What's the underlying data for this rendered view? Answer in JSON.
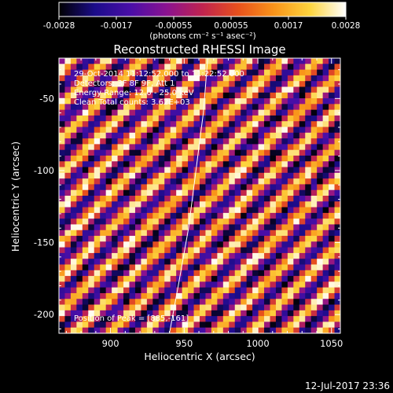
{
  "colorbar": {
    "ticks": [
      "-0.0028",
      "-0.0017",
      "-0.00055",
      "0.00055",
      "0.0017",
      "0.0028"
    ],
    "min": -0.0028,
    "max": 0.0028,
    "unit_label": "(photons cm⁻² s⁻¹ asec⁻²)",
    "colormap": [
      "#000000",
      "#1b0c8a",
      "#4a0ea8",
      "#8a1290",
      "#c0234f",
      "#e8511c",
      "#f9941a",
      "#fdd43e",
      "#ffffff"
    ]
  },
  "chart_data": {
    "type": "heatmap",
    "title": "Reconstructed RHESSI Image",
    "xlabel": "Heliocentric X (arcsec)",
    "ylabel": "Heliocentric Y (arcsec)",
    "xlim": [
      865,
      1056
    ],
    "ylim": [
      -213,
      -22
    ],
    "xticks": [
      900,
      950,
      1000,
      1050
    ],
    "yticks": [
      -50,
      -100,
      -150,
      -200
    ],
    "pattern": {
      "description_values": "diagonal alternating fringe pattern",
      "cell_size_arcsec": 4,
      "fringe_period_cells": 6,
      "value_range": [
        -0.0028,
        0.0028
      ]
    },
    "limb_curve": [
      [
        966,
        -22
      ],
      [
        963,
        -60
      ],
      [
        958,
        -100
      ],
      [
        953,
        -140
      ],
      [
        946,
        -180
      ],
      [
        940,
        -213
      ]
    ],
    "annotations": [
      "29-Oct-2014 11:12:52.000 to 11:22:52.000",
      "Detectors: 3F 8F 9F, Att 1",
      "Energy Range: 12.0 - 25.0 keV",
      "Clean   Total counts: 3.62E+03",
      "Position of Peak = [885,-161]"
    ]
  },
  "footer": {
    "timestamp": "12-Jul-2017 23:36"
  }
}
